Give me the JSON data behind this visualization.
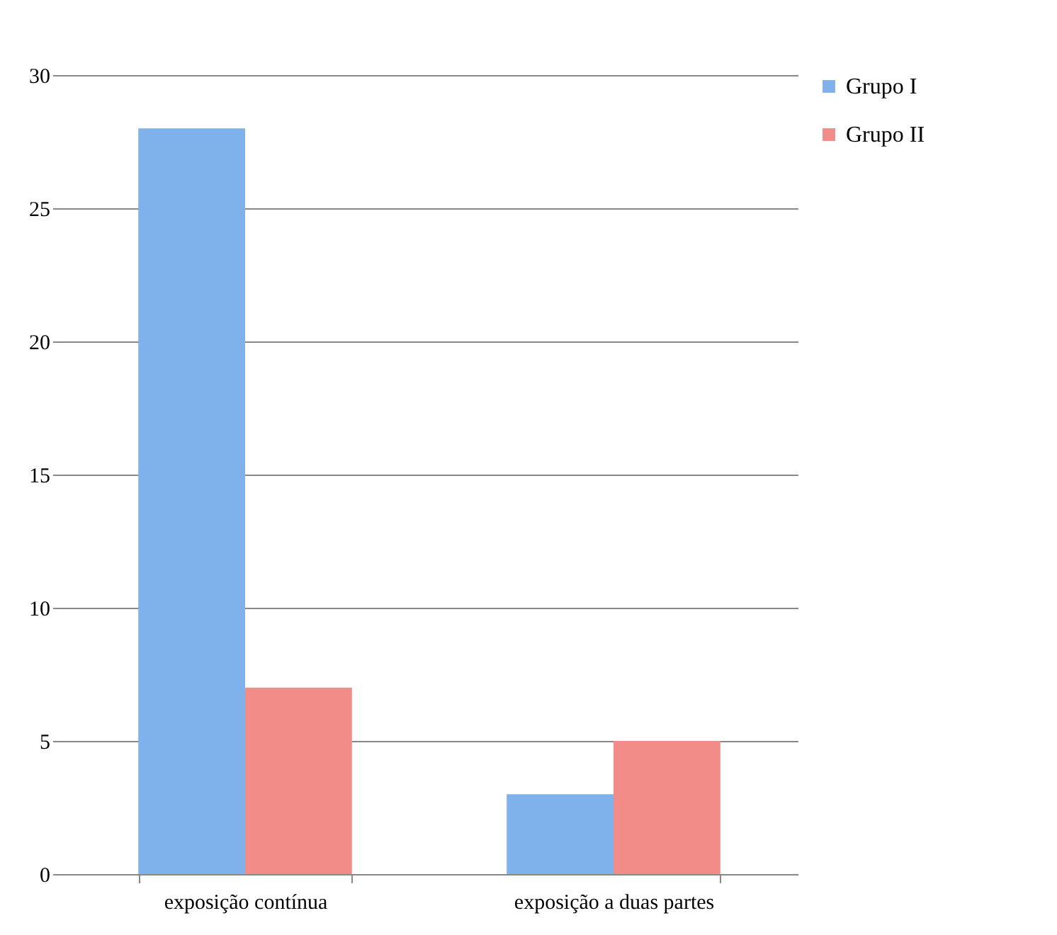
{
  "chart_data": {
    "type": "bar",
    "categories": [
      "exposição contínua",
      "exposição a duas partes"
    ],
    "series": [
      {
        "name": "Grupo I",
        "color": "#7fb2ea",
        "values": [
          28,
          3
        ]
      },
      {
        "name": "Grupo II",
        "color": "#f28c88",
        "values": [
          7,
          5
        ]
      }
    ],
    "ylim": [
      0,
      30
    ],
    "yticks": [
      0,
      5,
      10,
      15,
      20,
      25,
      30
    ],
    "grid": "y",
    "legend": "right"
  }
}
